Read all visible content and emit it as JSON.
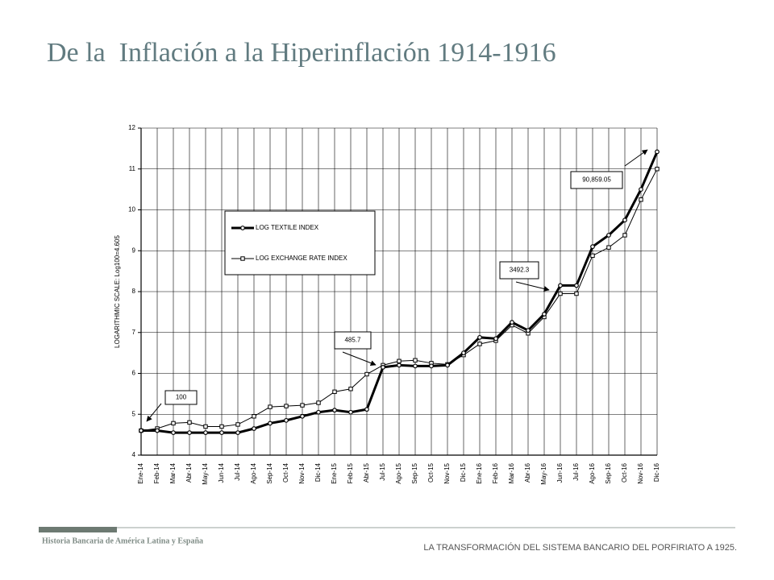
{
  "slide": {
    "title": "De la  Inflación a la Hiperinflación 1914-1916",
    "footer_left": "Historia Bancaria de América Latina y España",
    "footer_right": "LA TRANSFORMACIÓN DEL SISTEMA BANCARIO DEL PORFIRIATO A 1925."
  },
  "chart_data": {
    "type": "line",
    "y_label": "LOGARITHMIC SCALE: Log100=4.605",
    "categories": [
      "Ene-14",
      "Feb-14",
      "Mar-14",
      "Abr-14",
      "May-14",
      "Jun-14",
      "Jul-14",
      "Ago-14",
      "Sep-14",
      "Oct-14",
      "Nov-14",
      "Dic-14",
      "Ene-15",
      "Feb-15",
      "Abr-15",
      "Jul-15",
      "Ago-15",
      "Sep-15",
      "Oct-15",
      "Nov-15",
      "Dic-15",
      "Ene-16",
      "Feb-16",
      "Mar-16",
      "Abr-16",
      "May-16",
      "Jun-16",
      "Jul-16",
      "Ago-16",
      "Sep-16",
      "Oct-16",
      "Nov-16",
      "Dic-16"
    ],
    "series": [
      {
        "name": "LOG TEXTILE INDEX",
        "color": "#000000",
        "values": [
          4.6,
          4.6,
          4.55,
          4.55,
          4.55,
          4.55,
          4.55,
          4.65,
          4.78,
          4.85,
          4.95,
          5.05,
          5.1,
          5.05,
          5.12,
          6.15,
          6.2,
          6.18,
          6.18,
          6.2,
          6.5,
          6.88,
          6.85,
          7.25,
          7.05,
          7.45,
          8.15,
          8.15,
          9.1,
          9.38,
          9.75,
          10.5,
          11.42
        ]
      },
      {
        "name": "LOG EXCHANGE RATE INDEX",
        "color": "#000000",
        "values": [
          4.6,
          4.65,
          4.78,
          4.8,
          4.7,
          4.7,
          4.75,
          4.95,
          5.18,
          5.2,
          5.22,
          5.28,
          5.55,
          5.62,
          5.98,
          6.2,
          6.3,
          6.32,
          6.25,
          6.22,
          6.45,
          6.72,
          6.8,
          7.18,
          6.98,
          7.38,
          7.95,
          7.95,
          8.88,
          9.08,
          9.38,
          10.25,
          11.0
        ]
      }
    ],
    "annotations": [
      "100",
      "485.7",
      "3492.3",
      "90,859.05"
    ],
    "ylim": [
      4,
      12
    ],
    "yticks": [
      4,
      5,
      6,
      7,
      8,
      9,
      10,
      11,
      12
    ],
    "grid": true
  }
}
